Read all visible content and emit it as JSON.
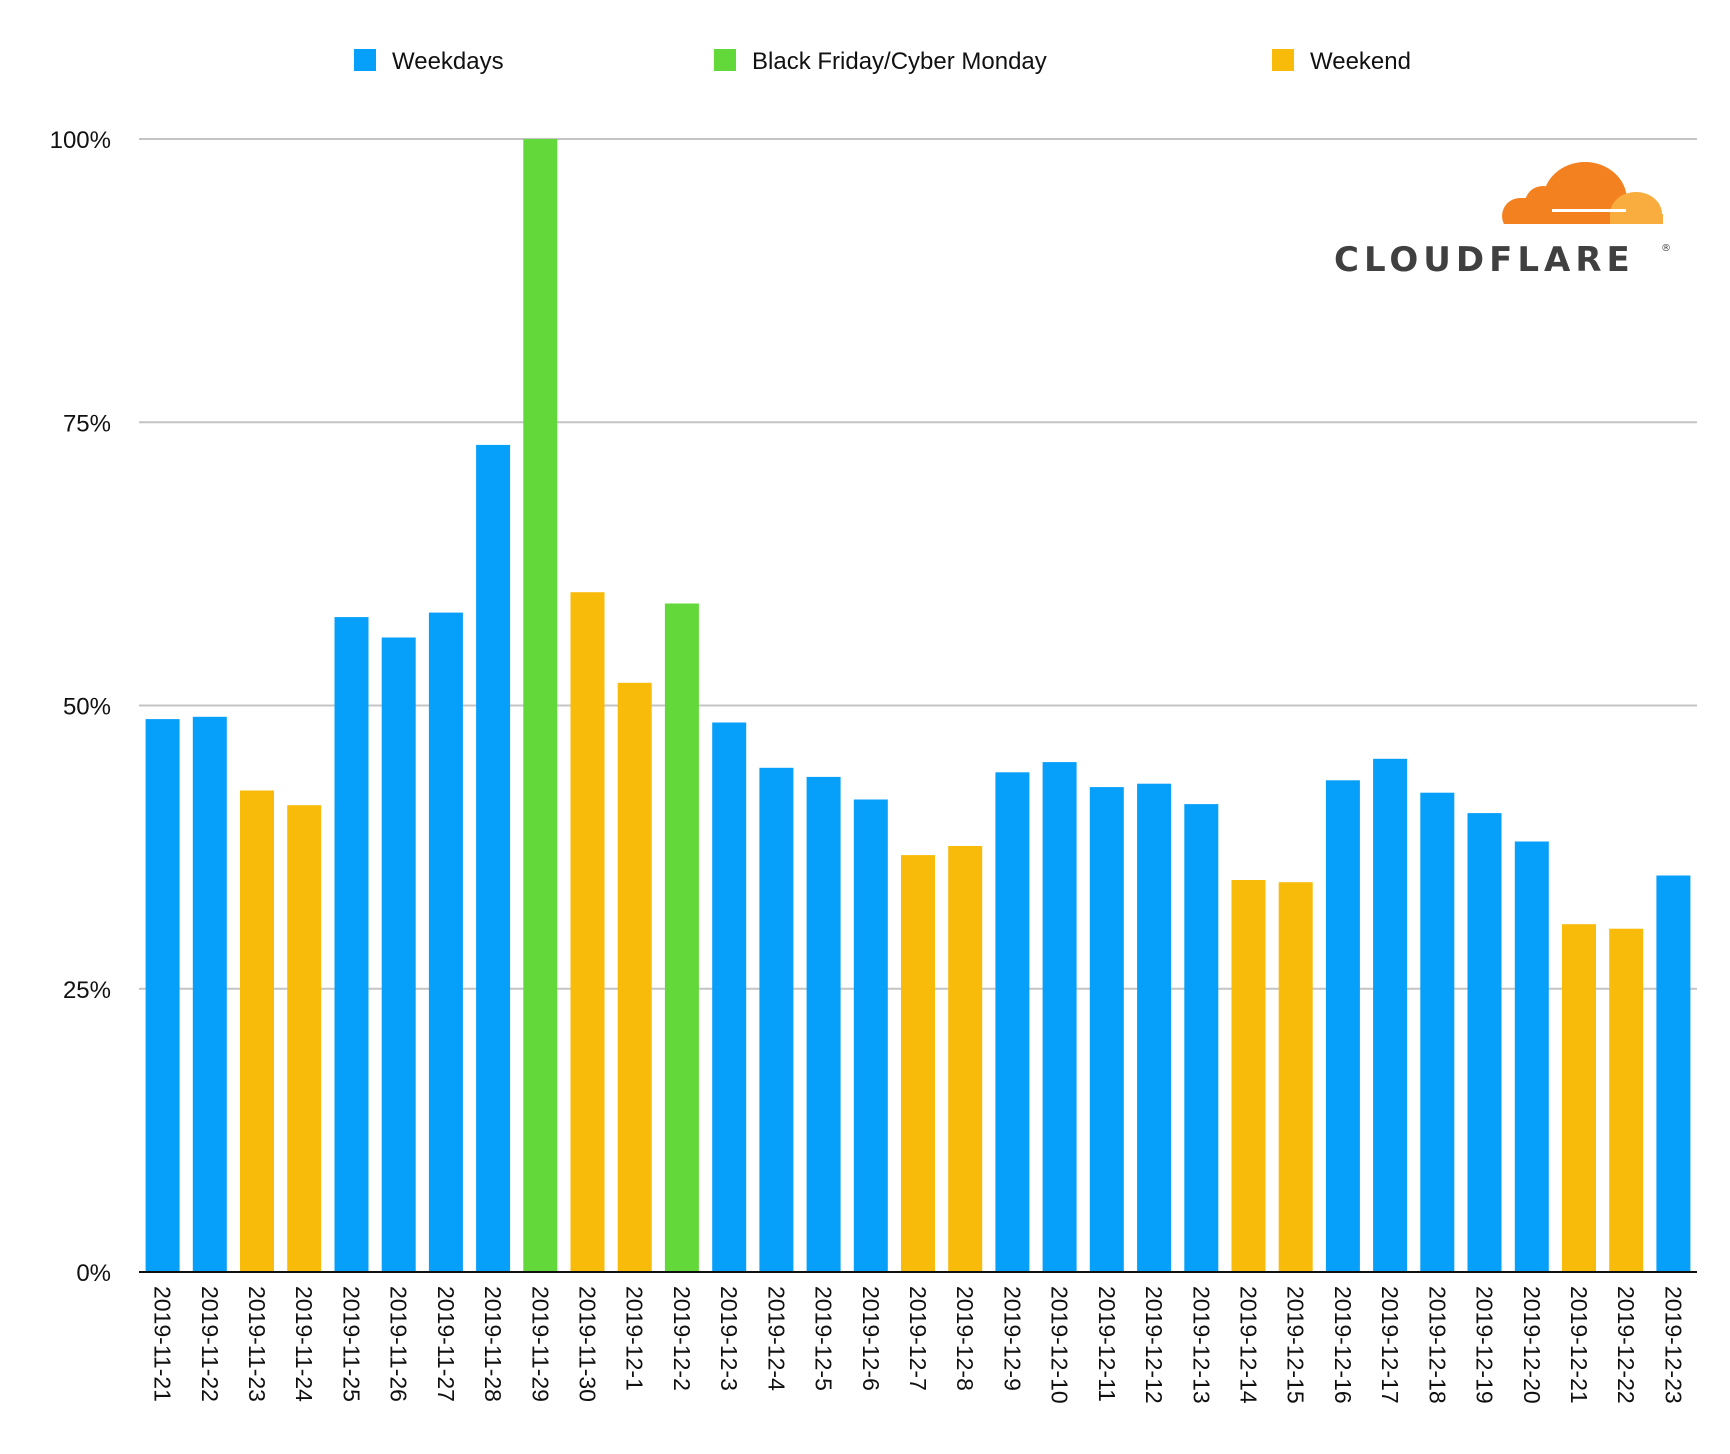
{
  "chart_data": {
    "type": "bar",
    "title": "",
    "xlabel": "",
    "ylabel": "",
    "ylim": [
      0,
      100
    ],
    "yticks": [
      "0%",
      "25%",
      "50%",
      "75%",
      "100%"
    ],
    "grid": true,
    "legend_position": "top",
    "legend": [
      {
        "key": "weekday",
        "label": "Weekdays",
        "color": "#069ffa"
      },
      {
        "key": "bfcm",
        "label": "Black Friday/Cyber Monday",
        "color": "#62d83a"
      },
      {
        "key": "weekend",
        "label": "Weekend",
        "color": "#f8bb09"
      }
    ],
    "categories": [
      "2019-11-21",
      "2019-11-22",
      "2019-11-23",
      "2019-11-24",
      "2019-11-25",
      "2019-11-26",
      "2019-11-27",
      "2019-11-28",
      "2019-11-29",
      "2019-11-30",
      "2019-12-1",
      "2019-12-2",
      "2019-12-3",
      "2019-12-4",
      "2019-12-5",
      "2019-12-6",
      "2019-12-7",
      "2019-12-8",
      "2019-12-9",
      "2019-12-10",
      "2019-12-11",
      "2019-12-12",
      "2019-12-13",
      "2019-12-14",
      "2019-12-15",
      "2019-12-16",
      "2019-12-17",
      "2019-12-18",
      "2019-12-19",
      "2019-12-20",
      "2019-12-21",
      "2019-12-22",
      "2019-12-23"
    ],
    "values": [
      48.8,
      49.0,
      42.5,
      41.2,
      57.8,
      56.0,
      58.2,
      73.0,
      100.0,
      60.0,
      52.0,
      59.0,
      48.5,
      44.5,
      43.7,
      41.7,
      36.8,
      37.6,
      44.1,
      45.0,
      42.8,
      43.1,
      41.3,
      34.6,
      34.4,
      43.4,
      45.3,
      42.3,
      40.5,
      38.0,
      30.7,
      30.3,
      35.0
    ],
    "groups": [
      "weekday",
      "weekday",
      "weekend",
      "weekend",
      "weekday",
      "weekday",
      "weekday",
      "weekday",
      "bfcm",
      "weekend",
      "weekend",
      "bfcm",
      "weekday",
      "weekday",
      "weekday",
      "weekday",
      "weekend",
      "weekend",
      "weekday",
      "weekday",
      "weekday",
      "weekday",
      "weekday",
      "weekend",
      "weekend",
      "weekday",
      "weekday",
      "weekday",
      "weekday",
      "weekday",
      "weekend",
      "weekend",
      "weekday"
    ]
  },
  "logo": {
    "text": "CLOUDFLARE",
    "registered_mark": "®",
    "colors": {
      "cloud_primary": "#f48120",
      "cloud_secondary": "#faad3f",
      "text": "#404041"
    }
  }
}
